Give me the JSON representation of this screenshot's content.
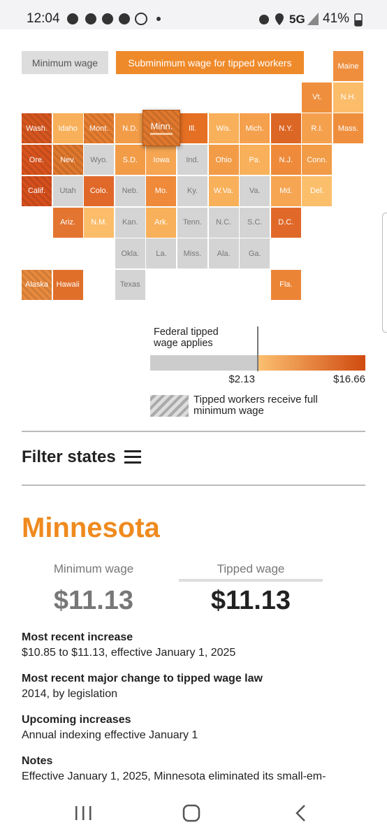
{
  "status_bar": {
    "time": "12:04",
    "network": "5G",
    "battery": "41%"
  },
  "legend_buttons": [
    {
      "label": "Minimum wage",
      "color": "#dddddd",
      "text_color": "#555555"
    },
    {
      "label": "Subminimum wage for tipped workers",
      "color": "#ef8a2a",
      "text_color": "#ffffff"
    }
  ],
  "states": [
    {
      "label": "Maine",
      "color": "#ef8f3e"
    },
    {
      "label": "Vt.",
      "color": "#ef8f3e"
    },
    {
      "label": "N.H.",
      "color": "#fbbd6a"
    },
    {
      "label": "Wash.",
      "color": "#d6561f",
      "hatched": true
    },
    {
      "label": "Idaho",
      "color": "#f8b05a"
    },
    {
      "label": "Mont.",
      "color": "#e67d30",
      "hatched": true
    },
    {
      "label": "N.D.",
      "color": "#f29c48"
    },
    {
      "label": "Minn.",
      "color": "#e0782e",
      "hatched": true,
      "selected": true
    },
    {
      "label": "Ill.",
      "color": "#e56f22"
    },
    {
      "label": "Wis.",
      "color": "#f8b05a"
    },
    {
      "label": "Mich.",
      "color": "#f5a04d"
    },
    {
      "label": "N.Y.",
      "color": "#dc6624"
    },
    {
      "label": "R.I.",
      "color": "#f5a04d"
    },
    {
      "label": "Mass.",
      "color": "#ef8f3e"
    },
    {
      "label": "Ore.",
      "color": "#d9531e",
      "hatched": true
    },
    {
      "label": "Nev.",
      "color": "#e0782e",
      "hatched": true
    },
    {
      "label": "Wyo.",
      "color": "#d4d4d4"
    },
    {
      "label": "S.D.",
      "color": "#f29c48"
    },
    {
      "label": "Iowa",
      "color": "#f6a552"
    },
    {
      "label": "Ind.",
      "color": "#d4d4d4"
    },
    {
      "label": "Ohio",
      "color": "#f29c48"
    },
    {
      "label": "Pa.",
      "color": "#f8b05a"
    },
    {
      "label": "N.J.",
      "color": "#ee8a3a"
    },
    {
      "label": "Conn.",
      "color": "#f29c48"
    },
    {
      "label": "Calif.",
      "color": "#d64f1d",
      "hatched": true
    },
    {
      "label": "Utah",
      "color": "#d4d4d4"
    },
    {
      "label": "Colo.",
      "color": "#e0692a"
    },
    {
      "label": "Neb.",
      "color": "#d4d4d4"
    },
    {
      "label": "Mo.",
      "color": "#ee8a3a"
    },
    {
      "label": "Ky.",
      "color": "#d4d4d4"
    },
    {
      "label": "W.Va.",
      "color": "#f8b05a"
    },
    {
      "label": "Va.",
      "color": "#d4d4d4"
    },
    {
      "label": "Md.",
      "color": "#f6a552"
    },
    {
      "label": "Del.",
      "color": "#fbbf6c"
    },
    {
      "label": "Ariz.",
      "color": "#e37530"
    },
    {
      "label": "N.M.",
      "color": "#fbbd6a"
    },
    {
      "label": "Kan.",
      "color": "#d4d4d4"
    },
    {
      "label": "Ark.",
      "color": "#f8b05a"
    },
    {
      "label": "Tenn.",
      "color": "#d4d4d4"
    },
    {
      "label": "N.C.",
      "color": "#d4d4d4"
    },
    {
      "label": "S.C.",
      "color": "#d4d4d4"
    },
    {
      "label": "D.C.",
      "color": "#e0692a"
    },
    {
      "label": "Okla.",
      "color": "#d4d4d4"
    },
    {
      "label": "La.",
      "color": "#d4d4d4"
    },
    {
      "label": "Miss.",
      "color": "#d4d4d4"
    },
    {
      "label": "Ala.",
      "color": "#d4d4d4"
    },
    {
      "label": "Ga.",
      "color": "#d4d4d4"
    },
    {
      "label": "Alaska",
      "color": "#e88a3e",
      "hatched": true
    },
    {
      "label": "Hawaii",
      "color": "#e06f2a"
    },
    {
      "label": "Texas",
      "color": "#d4d4d4"
    },
    {
      "label": "Fla.",
      "color": "#ec8436"
    }
  ],
  "scale": {
    "federal_label": "Federal tipped wage applies",
    "min_label": "$2.13",
    "max_label": "$16.66",
    "gray": "#cccccc",
    "from_color": "#fcc070",
    "to_color": "#d04a10"
  },
  "hatch_label": "Tipped workers receive full minimum wage",
  "filter_label": "Filter states",
  "detail": {
    "state": "Minnesota",
    "min_wage_label": "Minimum wage",
    "min_wage": "$11.13",
    "tipped_wage_label": "Tipped wage",
    "tipped_wage": "$11.13",
    "sections": [
      {
        "heading": "Most recent increase",
        "text": "$10.85 to $11.13, effective January 1, 2025"
      },
      {
        "heading": "Most recent major change to tipped wage law",
        "text": "2014, by legislation"
      },
      {
        "heading": "Upcoming increases",
        "text": "Annual indexing effective January 1"
      },
      {
        "heading": "Notes",
        "text": "Effective January 1, 2025, Minnesota eliminated its small-em-"
      }
    ]
  }
}
